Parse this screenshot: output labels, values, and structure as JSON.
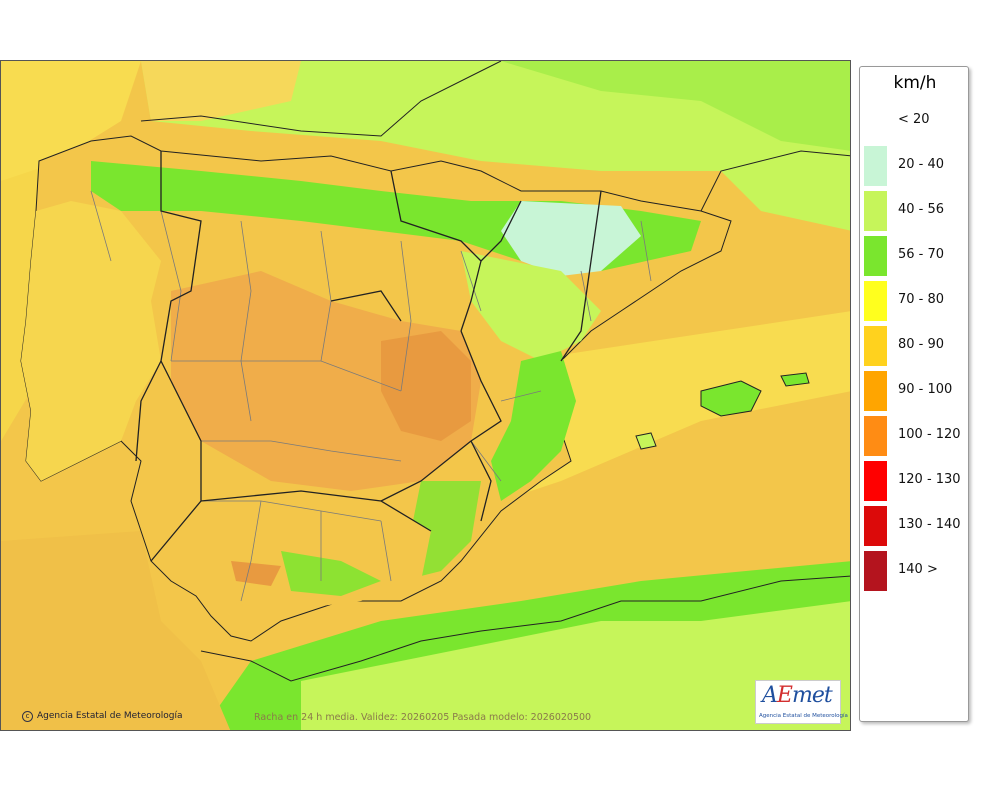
{
  "legend": {
    "title": "km/h",
    "items": [
      {
        "label": "< 20",
        "color": "#ffffff"
      },
      {
        "label": "20 - 40",
        "color": "#c8f5d6"
      },
      {
        "label": "40 - 56",
        "color": "#c6f55a"
      },
      {
        "label": "56 - 70",
        "color": "#7ae62e"
      },
      {
        "label": "70 - 80",
        "color": "#ffff1e"
      },
      {
        "label": "80 - 90",
        "color": "#ffd21e"
      },
      {
        "label": "90 - 100",
        "color": "#ffa500"
      },
      {
        "label": "100 - 120",
        "color": "#ff8c14"
      },
      {
        "label": "120 - 130",
        "color": "#ff0000"
      },
      {
        "label": "130 - 140",
        "color": "#dc0a0a"
      },
      {
        "label": "140 >",
        "color": "#b4141e"
      }
    ]
  },
  "footer": {
    "copyright": "Agencia Estatal de Meteorología",
    "caption": "Racha en 24 h media. Validez: 20260205 Pasada modelo: 2026020500"
  },
  "logo": {
    "mark_a": "A",
    "mark_e": "E",
    "mark_rest": "met",
    "subtitle": "Agencia Estatal de Meteorología"
  },
  "colors": {
    "land_base": "#f2c84b",
    "sea_yellow": "#f8dc50",
    "green_light": "#c6f55a",
    "green": "#7ae62e",
    "green_pale": "#c8f5d6",
    "orange": "#f0a040",
    "border": "#222222",
    "province": "#7a7a7a"
  }
}
